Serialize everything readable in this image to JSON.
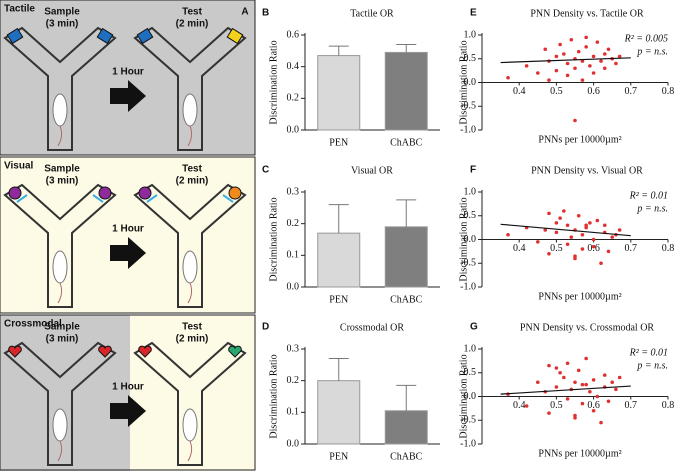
{
  "panel_a": {
    "letter": "A",
    "rows": [
      {
        "label": "Tactile",
        "sample": "Sample",
        "sample_time": "(3 min)",
        "test": "Test",
        "test_time": "(2 min)",
        "delay": "1 Hour"
      },
      {
        "label": "Visual",
        "sample": "Sample",
        "sample_time": "(3 min)",
        "test": "Test",
        "test_time": "(2 min)",
        "delay": "1 Hour"
      },
      {
        "label": "Crossmodal",
        "sample": "Sample",
        "sample_time": "(3 min)",
        "test": "Test",
        "test_time": "(2 min)",
        "delay": "1 Hour"
      }
    ]
  },
  "chart_data": [
    {
      "type": "bar",
      "panel": "B",
      "title": "Tactile OR",
      "y_label": "Discrimination Ratio",
      "categories": [
        "PEN",
        "ChABC"
      ],
      "values": [
        0.47,
        0.49
      ],
      "errors": [
        0.06,
        0.05
      ],
      "colors": [
        "#d9d9d9",
        "#7f7f7f"
      ],
      "ylim": [
        0,
        0.6
      ],
      "yticks": [
        {
          "value": 0,
          "label": "0.0"
        },
        0.2,
        0.4,
        0.6
      ]
    },
    {
      "type": "bar",
      "panel": "C",
      "title": "Visual OR",
      "y_label": "Discrimination Ratio",
      "categories": [
        "PEN",
        "ChABC"
      ],
      "values": [
        0.17,
        0.19
      ],
      "errors": [
        0.09,
        0.085
      ],
      "colors": [
        "#d9d9d9",
        "#7f7f7f"
      ],
      "ylim": [
        0,
        0.3
      ],
      "yticks": [
        {
          "value": 0,
          "label": "0.0"
        },
        0.1,
        0.2,
        0.3
      ]
    },
    {
      "type": "bar",
      "panel": "D",
      "title": "Crossmodal OR",
      "y_label": "Discrimination Ratio",
      "categories": [
        "PEN",
        "ChABC"
      ],
      "values": [
        0.2,
        0.105
      ],
      "errors": [
        0.07,
        0.08
      ],
      "colors": [
        "#d9d9d9",
        "#7f7f7f"
      ],
      "ylim": [
        0,
        0.3
      ],
      "yticks": [
        {
          "value": 0,
          "label": "0.0"
        },
        0.1,
        0.2,
        0.3
      ]
    },
    {
      "type": "scatter",
      "panel": "E",
      "title": "PNN Density vs. Tactile OR",
      "x_label": "PNNs per 10000µm²",
      "y_label": "Discrimination Ratio",
      "annotations": [
        "R² = 0.005",
        "p = n.s."
      ],
      "color": "#e03030",
      "x": [
        0.37,
        0.42,
        0.45,
        0.47,
        0.48,
        0.5,
        0.5,
        0.51,
        0.52,
        0.53,
        0.53,
        0.54,
        0.55,
        0.55,
        0.56,
        0.57,
        0.57,
        0.58,
        0.59,
        0.6,
        0.6,
        0.61,
        0.62,
        0.63,
        0.63,
        0.64,
        0.65,
        0.66,
        0.67,
        0.55,
        0.48,
        0.58
      ],
      "y": [
        0.1,
        0.35,
        0.2,
        0.7,
        0.45,
        0.55,
        0.25,
        0.8,
        0.6,
        0.4,
        0.15,
        0.9,
        0.5,
        0.3,
        0.65,
        0.45,
        0.05,
        0.75,
        0.35,
        0.55,
        0.2,
        0.85,
        0.45,
        0.6,
        0.3,
        0.7,
        0.5,
        0.4,
        0.55,
        -0.8,
        0.05,
        0.95
      ],
      "trend": {
        "x": [
          0.35,
          0.7
        ],
        "y": [
          0.42,
          0.52
        ]
      },
      "xlim": [
        0.3,
        0.8
      ],
      "xticks": [
        0.4,
        0.5,
        0.6,
        0.7,
        0.8
      ],
      "ylim": [
        -1,
        1
      ],
      "yticks": [
        {
          "value": -1,
          "label": "-1.0"
        },
        -0.5,
        {
          "value": 0,
          "label": "0.0"
        },
        0.5,
        {
          "value": 1,
          "label": "1.0"
        }
      ]
    },
    {
      "type": "scatter",
      "panel": "F",
      "title": "PNN Density vs. Visual OR",
      "x_label": "PNNs per 10000µm²",
      "y_label": "Discrimination Ratio",
      "annotations": [
        "R² = 0.01",
        "p = n.s."
      ],
      "color": "#e03030",
      "x": [
        0.37,
        0.42,
        0.45,
        0.47,
        0.48,
        0.5,
        0.5,
        0.51,
        0.52,
        0.53,
        0.53,
        0.54,
        0.55,
        0.55,
        0.56,
        0.57,
        0.57,
        0.58,
        0.59,
        0.6,
        0.6,
        0.61,
        0.62,
        0.63,
        0.63,
        0.64,
        0.65,
        0.66,
        0.67,
        0.55,
        0.48,
        0.58
      ],
      "y": [
        0.1,
        0.25,
        -0.05,
        0.2,
        -0.3,
        0.35,
        0.15,
        0.45,
        0.6,
        -0.1,
        0.3,
        0.05,
        -0.4,
        0.2,
        0.5,
        -0.2,
        0.1,
        0.25,
        0.35,
        -0.15,
        0.0,
        0.4,
        -0.5,
        0.15,
        0.3,
        -0.25,
        0.05,
        0.1,
        0.2,
        -0.35,
        0.55,
        0.3
      ],
      "trend": {
        "x": [
          0.35,
          0.7
        ],
        "y": [
          0.32,
          0.08
        ]
      },
      "xlim": [
        0.3,
        0.8
      ],
      "xticks": [
        0.4,
        0.5,
        0.6,
        0.7,
        0.8
      ],
      "ylim": [
        -1,
        1
      ],
      "yticks": [
        {
          "value": -1,
          "label": "-1.0"
        },
        -0.5,
        {
          "value": 0,
          "label": "0.0"
        },
        0.5,
        {
          "value": 1,
          "label": "1.0"
        }
      ]
    },
    {
      "type": "scatter",
      "panel": "G",
      "title": "PNN Density vs. Crossmodal OR",
      "x_label": "PNNs per 10000µm²",
      "y_label": "Discrimination Ratio",
      "annotations": [
        "R² = 0.01",
        "p = n.s."
      ],
      "color": "#e03030",
      "x": [
        0.37,
        0.42,
        0.45,
        0.47,
        0.48,
        0.5,
        0.5,
        0.51,
        0.52,
        0.53,
        0.53,
        0.54,
        0.55,
        0.55,
        0.56,
        0.57,
        0.57,
        0.58,
        0.59,
        0.6,
        0.6,
        0.61,
        0.62,
        0.63,
        0.63,
        0.64,
        0.65,
        0.66,
        0.67,
        0.55,
        0.48,
        0.58
      ],
      "y": [
        0.05,
        -0.2,
        0.3,
        0.1,
        -0.35,
        0.6,
        0.2,
        0.5,
        0.4,
        -0.05,
        0.7,
        0.15,
        -0.45,
        0.3,
        0.55,
        -0.15,
        0.25,
        0.8,
        0.1,
        -0.3,
        0.35,
        0.0,
        -0.55,
        0.45,
        0.2,
        -0.1,
        0.3,
        0.15,
        0.4,
        -0.4,
        0.65,
        0.25
      ],
      "trend": {
        "x": [
          0.35,
          0.7
        ],
        "y": [
          0.05,
          0.22
        ]
      },
      "xlim": [
        0.3,
        0.8
      ],
      "xticks": [
        0.4,
        0.5,
        0.6,
        0.7,
        0.8
      ],
      "ylim": [
        -1,
        1
      ],
      "yticks": [
        {
          "value": -1,
          "label": "-1.0"
        },
        -0.5,
        {
          "value": 0,
          "label": "0.0"
        },
        0.5,
        {
          "value": 1,
          "label": "1.0"
        }
      ]
    }
  ]
}
